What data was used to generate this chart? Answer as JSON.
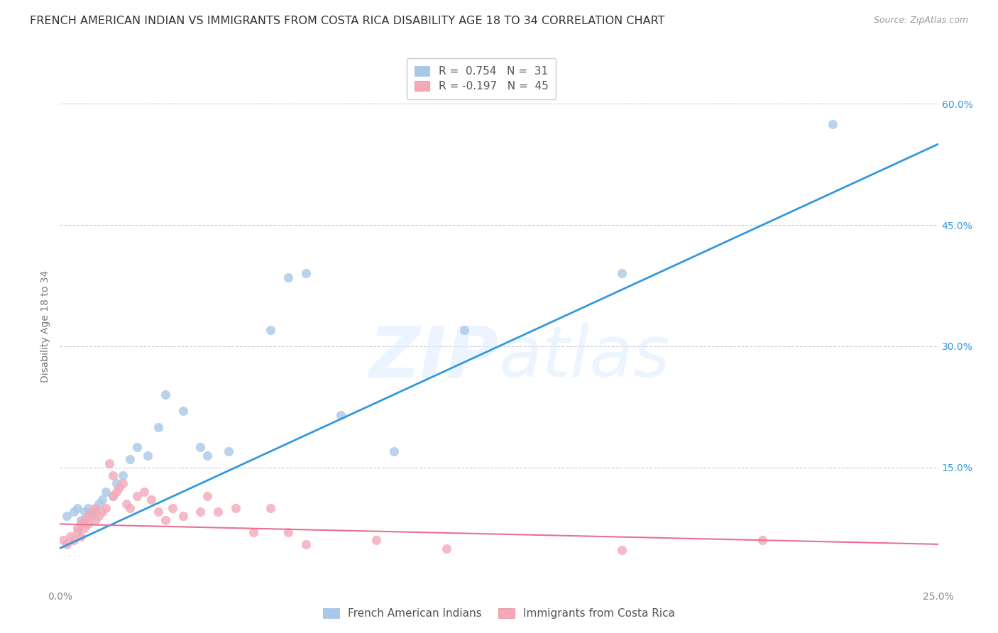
{
  "title": "FRENCH AMERICAN INDIAN VS IMMIGRANTS FROM COSTA RICA DISABILITY AGE 18 TO 34 CORRELATION CHART",
  "source": "Source: ZipAtlas.com",
  "ylabel": "Disability Age 18 to 34",
  "xlim": [
    0.0,
    0.25
  ],
  "ylim": [
    0.0,
    0.65
  ],
  "xticks": [
    0.0,
    0.05,
    0.1,
    0.15,
    0.2,
    0.25
  ],
  "yticks": [
    0.0,
    0.15,
    0.3,
    0.45,
    0.6
  ],
  "watermark": "ZIPatlas",
  "legend_entries": [
    {
      "label": "French American Indians",
      "color": "#a8c8e8",
      "R": "0.754",
      "N": "31"
    },
    {
      "label": "Immigrants from Costa Rica",
      "color": "#f4a8b8",
      "R": "-0.197",
      "N": "45"
    }
  ],
  "blue_scatter_x": [
    0.002,
    0.004,
    0.005,
    0.006,
    0.007,
    0.008,
    0.009,
    0.01,
    0.011,
    0.012,
    0.013,
    0.015,
    0.016,
    0.018,
    0.02,
    0.022,
    0.025,
    0.028,
    0.03,
    0.035,
    0.04,
    0.042,
    0.048,
    0.06,
    0.065,
    0.07,
    0.08,
    0.095,
    0.115,
    0.16,
    0.22
  ],
  "blue_scatter_y": [
    0.09,
    0.095,
    0.1,
    0.085,
    0.095,
    0.1,
    0.09,
    0.095,
    0.105,
    0.11,
    0.12,
    0.115,
    0.13,
    0.14,
    0.16,
    0.175,
    0.165,
    0.2,
    0.24,
    0.22,
    0.175,
    0.165,
    0.17,
    0.32,
    0.385,
    0.39,
    0.215,
    0.17,
    0.32,
    0.39,
    0.575
  ],
  "pink_scatter_x": [
    0.001,
    0.002,
    0.003,
    0.004,
    0.005,
    0.005,
    0.006,
    0.006,
    0.007,
    0.007,
    0.008,
    0.008,
    0.009,
    0.01,
    0.01,
    0.011,
    0.012,
    0.013,
    0.014,
    0.015,
    0.015,
    0.016,
    0.017,
    0.018,
    0.019,
    0.02,
    0.022,
    0.024,
    0.026,
    0.028,
    0.03,
    0.032,
    0.035,
    0.04,
    0.042,
    0.045,
    0.05,
    0.055,
    0.06,
    0.065,
    0.07,
    0.09,
    0.11,
    0.16,
    0.2
  ],
  "pink_scatter_y": [
    0.06,
    0.055,
    0.065,
    0.06,
    0.07,
    0.075,
    0.065,
    0.08,
    0.075,
    0.085,
    0.08,
    0.09,
    0.095,
    0.085,
    0.1,
    0.09,
    0.095,
    0.1,
    0.155,
    0.115,
    0.14,
    0.12,
    0.125,
    0.13,
    0.105,
    0.1,
    0.115,
    0.12,
    0.11,
    0.095,
    0.085,
    0.1,
    0.09,
    0.095,
    0.115,
    0.095,
    0.1,
    0.07,
    0.1,
    0.07,
    0.055,
    0.06,
    0.05,
    0.048,
    0.06
  ],
  "blue_line_color": "#3399dd",
  "pink_line_color": "#e87090",
  "scatter_blue_color": "#a8c8e8",
  "scatter_pink_color": "#f4a8b8",
  "scatter_alpha": 0.8,
  "scatter_size": 90,
  "background_color": "#ffffff",
  "grid_color": "#ccccdd",
  "title_fontsize": 11.5,
  "axis_fontsize": 10,
  "tick_fontsize": 10,
  "right_tick_color": "#3399dd",
  "bottom_tick_color": "#888888"
}
